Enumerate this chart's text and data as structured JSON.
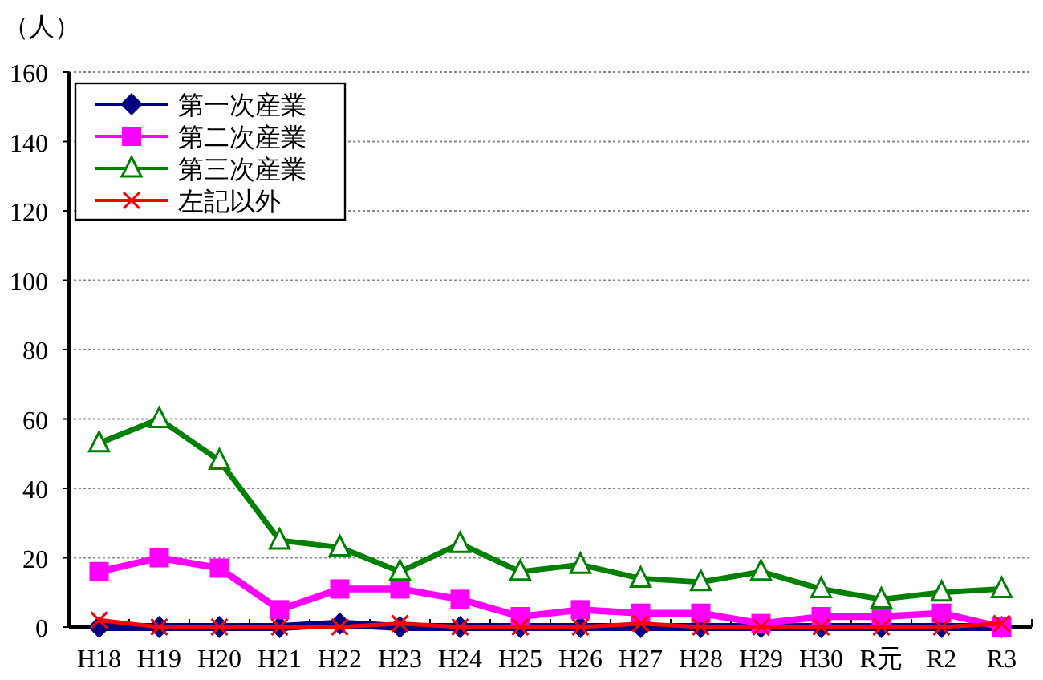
{
  "chart_data": {
    "type": "line",
    "ylabel": "（人）",
    "categories": [
      "H18",
      "H19",
      "H20",
      "H21",
      "H22",
      "H23",
      "H24",
      "H25",
      "H26",
      "H27",
      "H28",
      "H29",
      "H30",
      "R元",
      "R2",
      "R3"
    ],
    "series": [
      {
        "name": "第一次産業",
        "color": "#000080",
        "marker": "diamond",
        "values": [
          0,
          0,
          0,
          0,
          1,
          0,
          0,
          0,
          0,
          0,
          0,
          0,
          0,
          0,
          0,
          0
        ]
      },
      {
        "name": "第二次産業",
        "color": "#ff00ff",
        "marker": "square",
        "values": [
          16,
          20,
          17,
          5,
          11,
          11,
          8,
          3,
          5,
          4,
          4,
          1,
          3,
          3,
          4,
          0
        ]
      },
      {
        "name": "第三次産業",
        "color": "#008000",
        "marker": "triangle",
        "values": [
          53,
          60,
          48,
          25,
          23,
          16,
          24,
          16,
          18,
          14,
          13,
          16,
          11,
          8,
          10,
          11
        ]
      },
      {
        "name": "左記以外",
        "color": "#ff0000",
        "marker": "cross",
        "values": [
          2,
          0,
          0,
          0,
          0,
          1,
          0,
          0,
          0,
          1,
          0,
          0,
          0,
          0,
          0,
          1
        ]
      }
    ],
    "ylim": [
      0,
      160
    ],
    "yticks": [
      0,
      20,
      40,
      60,
      80,
      100,
      120,
      140,
      160
    ],
    "grid": "y",
    "legend": "top left",
    "line_style": "solid"
  }
}
